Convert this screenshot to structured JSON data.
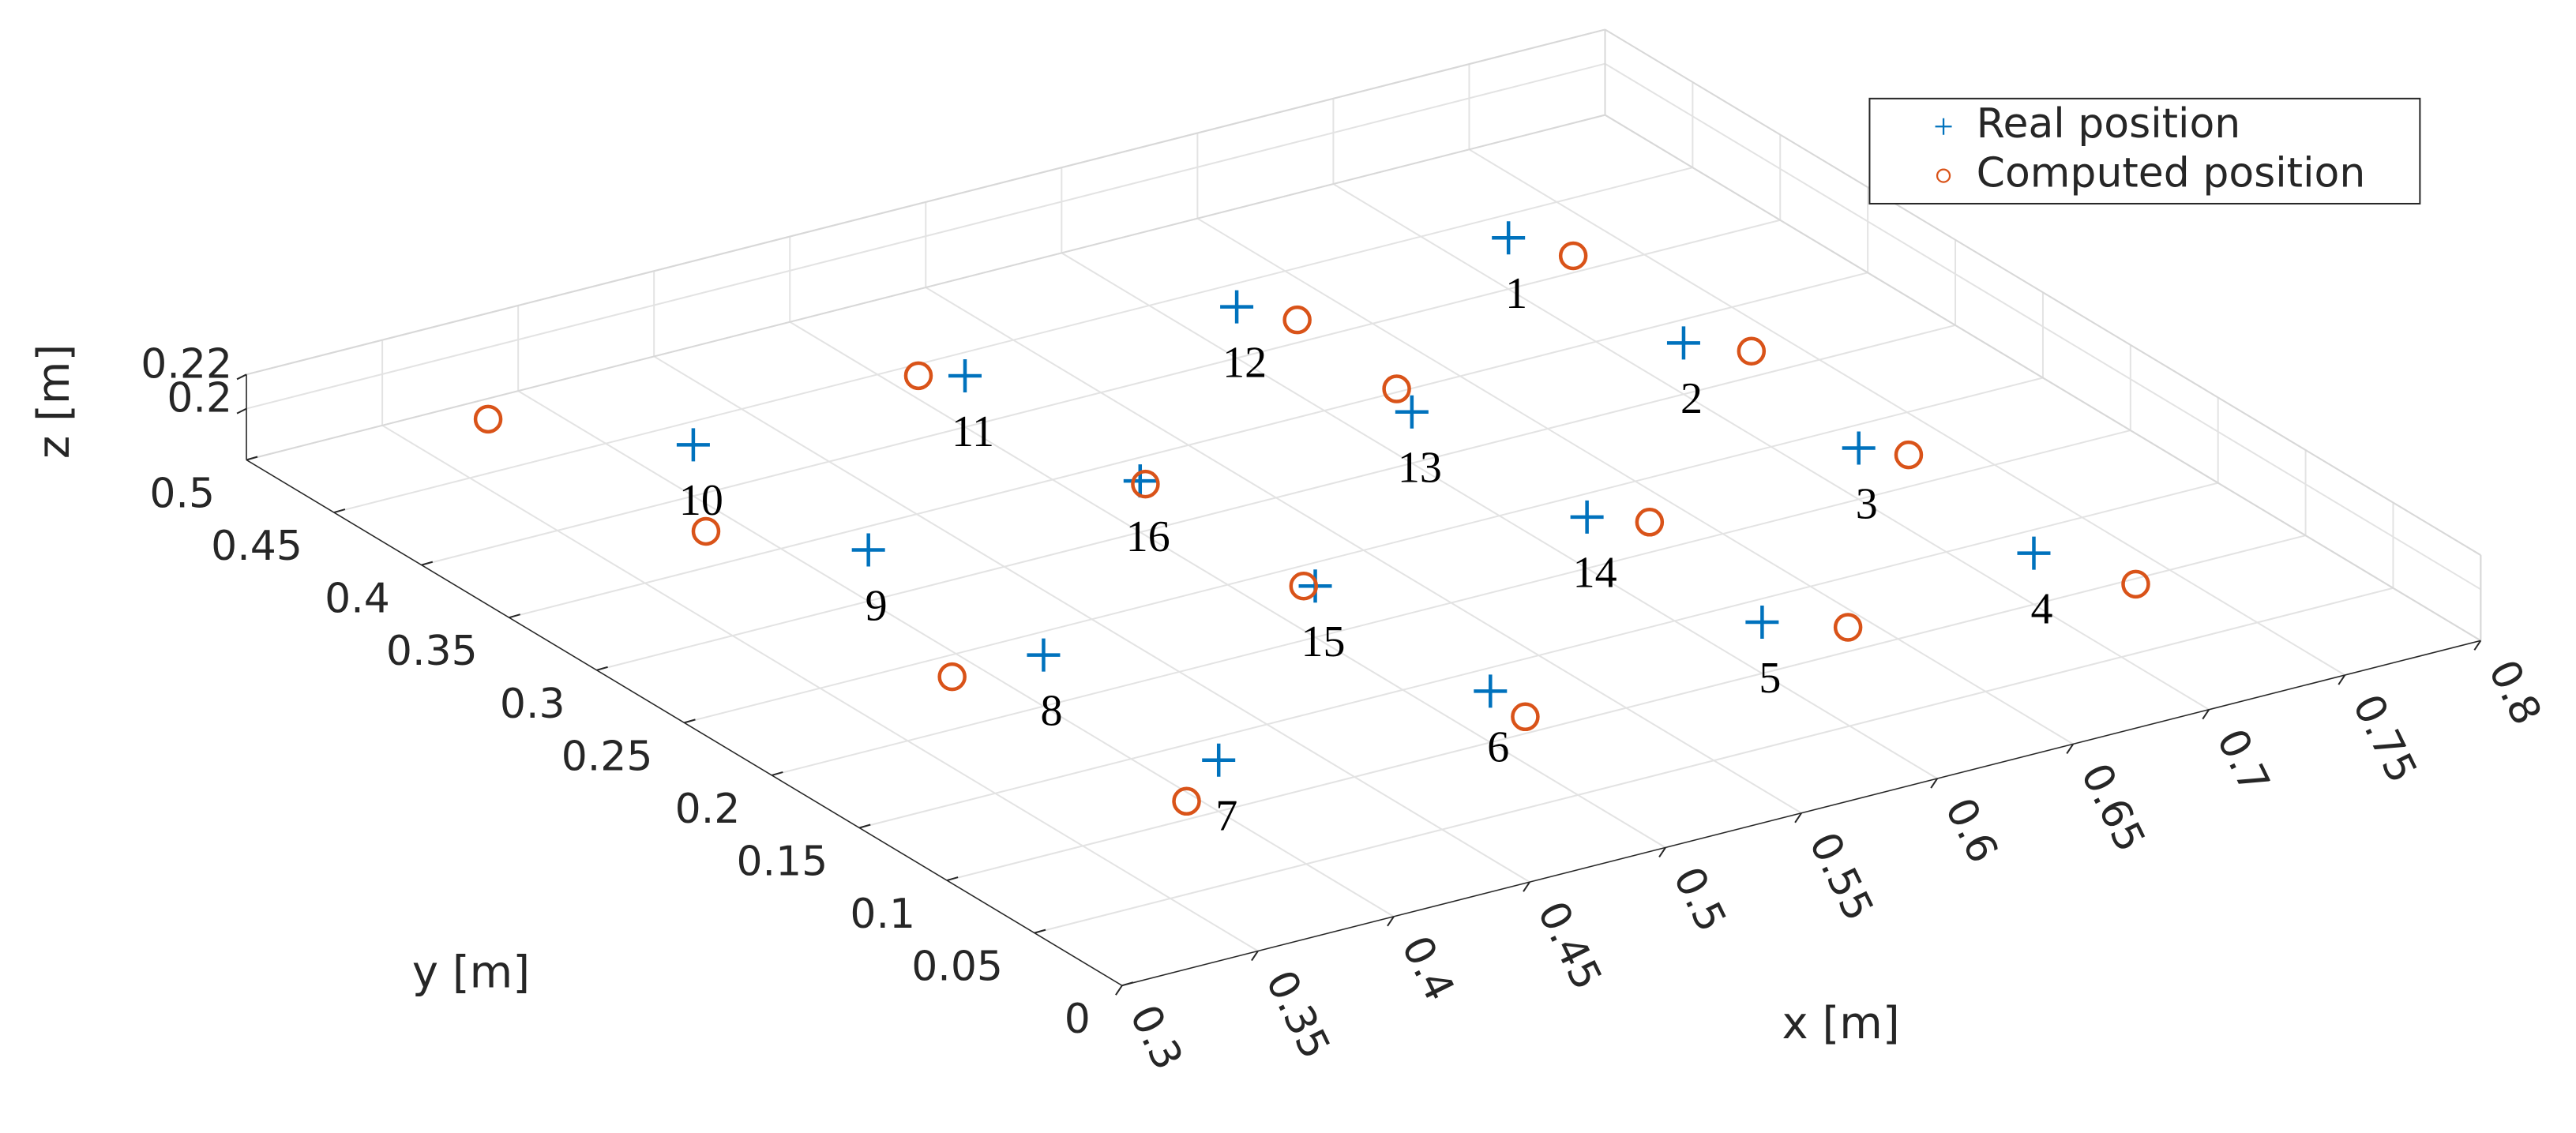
{
  "chart_data": {
    "type": "scatter",
    "xlabel": "x [m]",
    "ylabel": "y [m]",
    "zlabel": "z [m]",
    "xlim": [
      0.3,
      0.8
    ],
    "ylim": [
      0,
      0.5
    ],
    "zlim": [
      0.17,
      0.22
    ],
    "xticks": [
      0.3,
      0.35,
      0.4,
      0.45,
      0.5,
      0.55,
      0.6,
      0.65,
      0.7,
      0.75,
      0.8
    ],
    "yticks": [
      0,
      0.05,
      0.1,
      0.15,
      0.2,
      0.25,
      0.3,
      0.35,
      0.4,
      0.45,
      0.5
    ],
    "zticks": [
      0.2,
      0.22
    ],
    "grid": true,
    "legend": "northeast",
    "point_labels": [
      "1",
      "2",
      "3",
      "4",
      "5",
      "6",
      "7",
      "8",
      "9",
      "10",
      "11",
      "12",
      "13",
      "14",
      "15",
      "16"
    ],
    "series": [
      {
        "name": "Real position",
        "color": "#0072bd",
        "marker": "+",
        "x": [
          0.7,
          0.7,
          0.7,
          0.7,
          0.6,
          0.5,
          0.4,
          0.4,
          0.4,
          0.4,
          0.5,
          0.6,
          0.6,
          0.6,
          0.5,
          0.5
        ],
        "y": [
          0.4,
          0.3,
          0.2,
          0.1,
          0.1,
          0.1,
          0.1,
          0.2,
          0.3,
          0.4,
          0.4,
          0.4,
          0.3,
          0.2,
          0.2,
          0.3
        ],
        "z": [
          0.2,
          0.2,
          0.2,
          0.2,
          0.2,
          0.2,
          0.2,
          0.2,
          0.2,
          0.2,
          0.2,
          0.2,
          0.2,
          0.2,
          0.2,
          0.2
        ]
      },
      {
        "name": "Computed position",
        "color": "#d95319",
        "marker": "o",
        "x": [
          0.709,
          0.714,
          0.71,
          0.713,
          0.62,
          0.498,
          0.374,
          0.367,
          0.366,
          0.358,
          0.488,
          0.61,
          0.606,
          0.614,
          0.497,
          0.5
        ],
        "y": [
          0.377,
          0.283,
          0.187,
          0.062,
          0.082,
          0.077,
          0.078,
          0.201,
          0.34,
          0.452,
          0.408,
          0.381,
          0.318,
          0.186,
          0.202,
          0.297
        ],
        "z": [
          0.2,
          0.2,
          0.2,
          0.2,
          0.2,
          0.2,
          0.2,
          0.2,
          0.2,
          0.2,
          0.2,
          0.2,
          0.2,
          0.2,
          0.2,
          0.2
        ]
      }
    ]
  }
}
